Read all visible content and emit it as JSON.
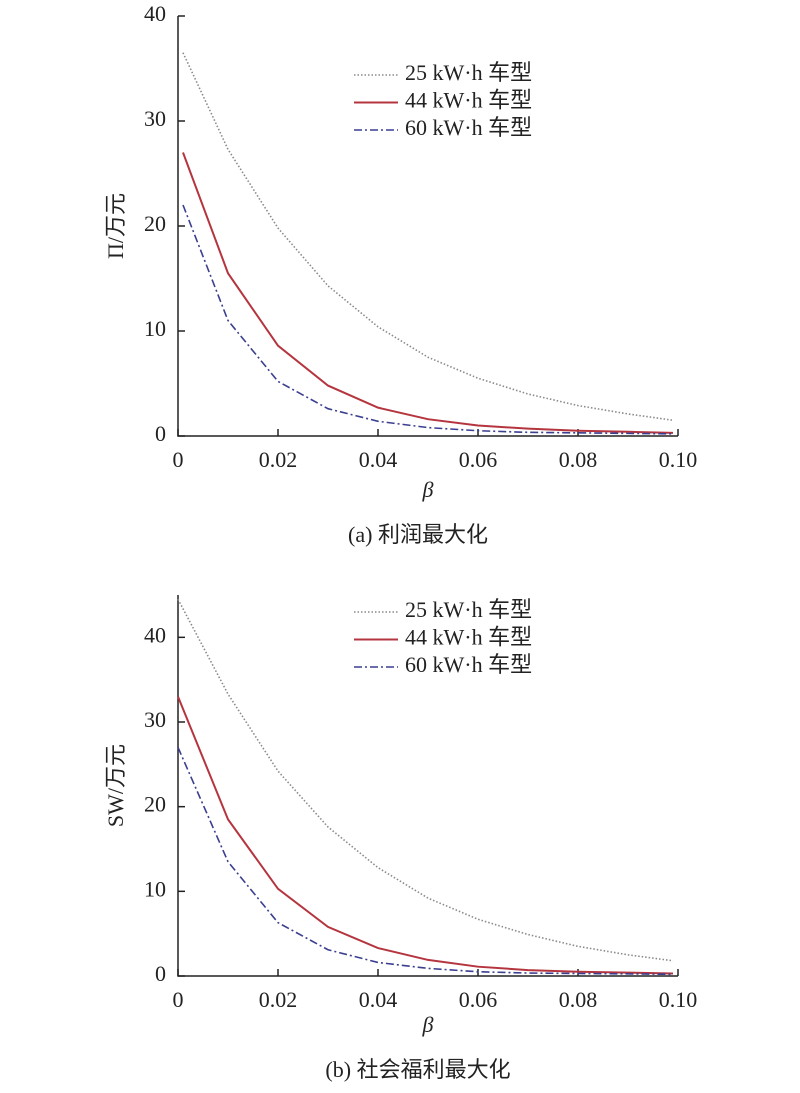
{
  "chart_data": [
    {
      "type": "line",
      "xlabel": "β",
      "ylabel": "Π/万元",
      "caption": "(a) 利润最大化",
      "x": [
        0.001,
        0.01,
        0.02,
        0.03,
        0.04,
        0.05,
        0.06,
        0.07,
        0.08,
        0.09,
        0.099
      ],
      "series": [
        {
          "name": "25 kW·h 车型",
          "color": "#8a8a8a",
          "style": "dotted",
          "values": [
            36.5,
            27.3,
            19.8,
            14.3,
            10.4,
            7.5,
            5.5,
            4.0,
            2.9,
            2.1,
            1.5
          ]
        },
        {
          "name": "44 kW·h 车型",
          "color": "#b5353f",
          "style": "solid",
          "values": [
            27,
            15.5,
            8.6,
            4.8,
            2.7,
            1.6,
            1.0,
            0.7,
            0.5,
            0.4,
            0.3
          ]
        },
        {
          "name": "60 kW·h 车型",
          "color": "#3b3f8f",
          "style": "dashdot",
          "values": [
            22,
            11,
            5.2,
            2.6,
            1.4,
            0.8,
            0.5,
            0.35,
            0.3,
            0.25,
            0.2
          ]
        }
      ],
      "xlim": [
        0,
        0.1
      ],
      "xticks": [
        0,
        0.02,
        0.04,
        0.06,
        0.08,
        {
          "value": 0.1,
          "label": "0.10"
        }
      ],
      "ylim": [
        0,
        40
      ],
      "yticks": [
        0,
        10,
        20,
        30,
        40
      ]
    },
    {
      "type": "line",
      "xlabel": "β",
      "ylabel": "SW/万元",
      "caption": "(b) 社会福利最大化",
      "x": [
        0,
        0.01,
        0.02,
        0.03,
        0.04,
        0.05,
        0.06,
        0.07,
        0.08,
        0.09,
        0.099
      ],
      "series": [
        {
          "name": "25 kW·h 车型",
          "color": "#8a8a8a",
          "style": "dotted",
          "values": [
            44.5,
            33.3,
            24.2,
            17.6,
            12.8,
            9.2,
            6.7,
            4.9,
            3.5,
            2.5,
            1.8
          ]
        },
        {
          "name": "44 kW·h 车型",
          "color": "#b5353f",
          "style": "solid",
          "values": [
            33,
            18.5,
            10.3,
            5.8,
            3.3,
            1.9,
            1.1,
            0.7,
            0.5,
            0.4,
            0.3
          ]
        },
        {
          "name": "60 kW·h 车型",
          "color": "#3b3f8f",
          "style": "dashdot",
          "values": [
            27,
            13.5,
            6.3,
            3.1,
            1.6,
            0.9,
            0.5,
            0.35,
            0.3,
            0.25,
            0.2
          ]
        }
      ],
      "xlim": [
        0,
        0.1
      ],
      "xticks": [
        0,
        0.02,
        0.04,
        0.06,
        0.08,
        {
          "value": 0.1,
          "label": "0.10"
        }
      ],
      "ylim": [
        0,
        45
      ],
      "yticks": [
        0,
        10,
        20,
        30,
        40
      ]
    }
  ]
}
